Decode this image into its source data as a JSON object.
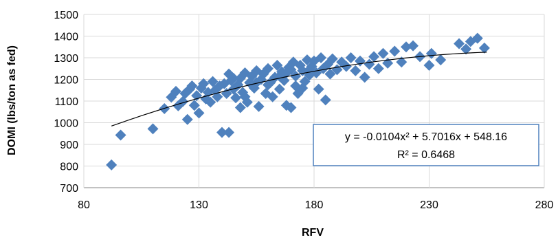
{
  "chart_data": {
    "type": "scatter",
    "xlabel": "RFV",
    "ylabel": "DOMI (lbs/ton as fed)",
    "xlim": [
      80,
      280
    ],
    "ylim": [
      700,
      1500
    ],
    "xticks": [
      "80",
      "130",
      "180",
      "230",
      "280"
    ],
    "yticks": [
      "700",
      "800",
      "900",
      "1000",
      "1100",
      "1200",
      "1300",
      "1400",
      "1500"
    ],
    "grid": true,
    "marker_color": "#4F81BD",
    "trendline": {
      "type": "polynomial",
      "a": -0.0104,
      "b": 5.7016,
      "c": 548.16,
      "x_range": [
        92,
        255
      ],
      "color": "#000000",
      "equation_text": "y = -0.0104x² + 5.7016x + 548.16",
      "r2_text": "R² = 0.6468"
    },
    "points": [
      [
        92,
        805
      ],
      [
        96,
        943
      ],
      [
        110,
        972
      ],
      [
        115,
        1065
      ],
      [
        118,
        1118
      ],
      [
        120,
        1145
      ],
      [
        121,
        1078
      ],
      [
        123,
        1098
      ],
      [
        124,
        1135
      ],
      [
        125,
        1015
      ],
      [
        126,
        1155
      ],
      [
        127,
        1170
      ],
      [
        128,
        1080
      ],
      [
        129,
        1125
      ],
      [
        130,
        1045
      ],
      [
        131,
        1160
      ],
      [
        132,
        1180
      ],
      [
        133,
        1110
      ],
      [
        134,
        1140
      ],
      [
        135,
        1095
      ],
      [
        136,
        1190
      ],
      [
        137,
        1150
      ],
      [
        138,
        1120
      ],
      [
        139,
        1170
      ],
      [
        140,
        955
      ],
      [
        141,
        1180
      ],
      [
        142,
        1135
      ],
      [
        143,
        955
      ],
      [
        143,
        1225
      ],
      [
        144,
        1195
      ],
      [
        145,
        1155
      ],
      [
        146,
        1115
      ],
      [
        147,
        1175
      ],
      [
        148,
        1070
      ],
      [
        148,
        1205
      ],
      [
        149,
        1140
      ],
      [
        150,
        1230
      ],
      [
        151,
        1095
      ],
      [
        152,
        1185
      ],
      [
        153,
        1215
      ],
      [
        154,
        1160
      ],
      [
        155,
        1240
      ],
      [
        156,
        1075
      ],
      [
        157,
        1200
      ],
      [
        158,
        1225
      ],
      [
        159,
        1135
      ],
      [
        160,
        1250
      ],
      [
        161,
        1185
      ],
      [
        162,
        1120
      ],
      [
        163,
        1210
      ],
      [
        164,
        1265
      ],
      [
        165,
        1155
      ],
      [
        166,
        1235
      ],
      [
        167,
        1195
      ],
      [
        168,
        1080
      ],
      [
        169,
        1255
      ],
      [
        170,
        1070
      ],
      [
        171,
        1280
      ],
      [
        172,
        1215
      ],
      [
        173,
        1135
      ],
      [
        174,
        1265
      ],
      [
        175,
        1240
      ],
      [
        176,
        1190
      ],
      [
        177,
        1290
      ],
      [
        178,
        1220
      ],
      [
        179,
        1260
      ],
      [
        180,
        1285
      ],
      [
        181,
        1230
      ],
      [
        182,
        1155
      ],
      [
        183,
        1300
      ],
      [
        184,
        1250
      ],
      [
        185,
        1105
      ],
      [
        186,
        1270
      ],
      [
        187,
        1225
      ],
      [
        188,
        1295
      ],
      [
        190,
        1245
      ],
      [
        192,
        1280
      ],
      [
        194,
        1260
      ],
      [
        196,
        1300
      ],
      [
        198,
        1240
      ],
      [
        200,
        1285
      ],
      [
        202,
        1210
      ],
      [
        204,
        1270
      ],
      [
        206,
        1305
      ],
      [
        208,
        1250
      ],
      [
        210,
        1320
      ],
      [
        212,
        1275
      ],
      [
        215,
        1330
      ],
      [
        218,
        1280
      ],
      [
        220,
        1350
      ],
      [
        223,
        1355
      ],
      [
        226,
        1305
      ],
      [
        230,
        1265
      ],
      [
        231,
        1320
      ],
      [
        235,
        1290
      ],
      [
        243,
        1365
      ],
      [
        246,
        1340
      ],
      [
        248,
        1375
      ],
      [
        251,
        1390
      ],
      [
        254,
        1345
      ],
      [
        160,
        1175
      ],
      [
        165,
        1215
      ],
      [
        170,
        1245
      ],
      [
        175,
        1160
      ],
      [
        150,
        1120
      ],
      [
        145,
        1205
      ],
      [
        155,
        1185
      ],
      [
        168,
        1230
      ],
      [
        172,
        1170
      ],
      [
        178,
        1245
      ]
    ]
  }
}
